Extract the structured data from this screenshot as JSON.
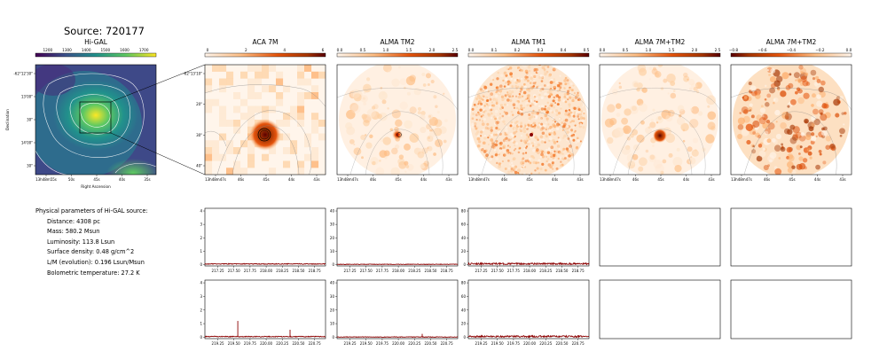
{
  "source_title": "Source: 720177",
  "params": {
    "heading": "Physical parameters of Hi-GAL source:",
    "lines": [
      "Distance: 4308 pc",
      "Mass: 580.2 Msun",
      "Luminosity: 113.8 Lsun",
      "Surface density: 0.48 g/cm^2",
      "L/M (evolution): 0.196 Lsun/Msun",
      "Bolometric temperature: 27.2 K"
    ]
  },
  "colors": {
    "higal_cmap": [
      "#440154",
      "#3b528b",
      "#21918c",
      "#5ec962",
      "#fde725"
    ],
    "alma_cmap": [
      "#fff5eb",
      "#fdbe85",
      "#e6550d",
      "#a63603",
      "#5a0000"
    ],
    "spectrum_line": "#8b0000"
  },
  "chart_data": [
    {
      "type": "heatmap",
      "title": "Hi-GAL",
      "colorbar_ticks": [
        "1200",
        "1300",
        "1400",
        "1500",
        "1600",
        "1700"
      ],
      "y_ticks": [
        "-62°12'30\"",
        "13'00\"",
        "30\"",
        "14'00\"",
        "30\""
      ],
      "x_ticks": [
        "13h48m55s",
        "50s",
        "45s",
        "40s",
        "35s"
      ],
      "xlabel": "Right Ascension",
      "ylabel": "Declination"
    },
    {
      "type": "heatmap",
      "title": "ACA 7M",
      "colorbar_ticks": [
        "0",
        "2",
        "4",
        "6"
      ],
      "y_ticks": [
        "-62°13'10\"",
        "20\"",
        "30\"",
        "40\""
      ],
      "x_ticks": [
        "13h48m47s",
        "46s",
        "45s",
        "44s",
        "43s"
      ]
    },
    {
      "type": "heatmap",
      "title": "ALMA TM2",
      "colorbar_ticks": [
        "0.0",
        "0.5",
        "1.0",
        "1.5",
        "2.0",
        "2.5"
      ],
      "x_ticks": [
        "13h48m47s",
        "46s",
        "45s",
        "44s",
        "43s"
      ]
    },
    {
      "type": "heatmap",
      "title": "ALMA TM1",
      "colorbar_ticks": [
        "0.0",
        "0.1",
        "0.2",
        "0.3",
        "0.4",
        "0.5"
      ],
      "x_ticks": [
        "13h48m47s",
        "46s",
        "45s",
        "44s",
        "43s"
      ]
    },
    {
      "type": "heatmap",
      "title": "ALMA 7M+TM2",
      "colorbar_ticks": [
        "0.0",
        "0.5",
        "1.0",
        "1.5",
        "2.0",
        "2.5"
      ],
      "x_ticks": [
        "13h48m47s",
        "46s",
        "45s",
        "44s",
        "43s"
      ]
    },
    {
      "type": "heatmap",
      "title": "ALMA 7M+TM2",
      "colorbar_ticks": [
        "−0.8",
        "−0.6",
        "−0.4",
        "−0.2",
        "0.0"
      ],
      "x_ticks": [
        "13h48m47s",
        "46s",
        "45s",
        "44s",
        "43s"
      ]
    }
  ],
  "spectra": {
    "row1": {
      "x_ticks": [
        "217.25",
        "217.50",
        "217.75",
        "218.00",
        "218.25",
        "218.50",
        "218.75"
      ],
      "xlim": [
        217.05,
        218.92
      ],
      "panels": [
        {
          "y_ticks": [
            "0",
            "1",
            "2",
            "3",
            "4"
          ],
          "ylim": [
            -0.1,
            4.2
          ],
          "baseline": 0.05,
          "noise": 0.03,
          "peaks": []
        },
        {
          "y_ticks": [
            "0",
            "10",
            "20",
            "30",
            "40"
          ],
          "ylim": [
            -1,
            42
          ],
          "baseline": 0.2,
          "noise": 0.2,
          "peaks": []
        },
        {
          "y_ticks": [
            "0",
            "20",
            "40",
            "60",
            "80"
          ],
          "ylim": [
            -2,
            84
          ],
          "baseline": 1.2,
          "noise": 1.2,
          "peaks": []
        }
      ]
    },
    "row2": {
      "x_ticks": [
        "219.25",
        "219.50",
        "219.75",
        "220.00",
        "220.25",
        "220.50",
        "220.75"
      ],
      "xlim": [
        219.05,
        220.92
      ],
      "panels": [
        {
          "y_ticks": [
            "0",
            "1",
            "2",
            "3",
            "4"
          ],
          "ylim": [
            -0.1,
            4.2
          ],
          "baseline": 0.05,
          "noise": 0.03,
          "peaks": [
            [
              219.56,
              1.2
            ],
            [
              220.37,
              0.55
            ]
          ]
        },
        {
          "y_ticks": [
            "0",
            "10",
            "20",
            "30",
            "40"
          ],
          "ylim": [
            -1,
            42
          ],
          "baseline": 0.2,
          "noise": 0.2,
          "peaks": [
            [
              220.37,
              2.5
            ]
          ]
        },
        {
          "y_ticks": [
            "0",
            "20",
            "40",
            "60",
            "80"
          ],
          "ylim": [
            -2,
            84
          ],
          "baseline": 1.2,
          "noise": 1.2,
          "peaks": []
        }
      ]
    }
  }
}
